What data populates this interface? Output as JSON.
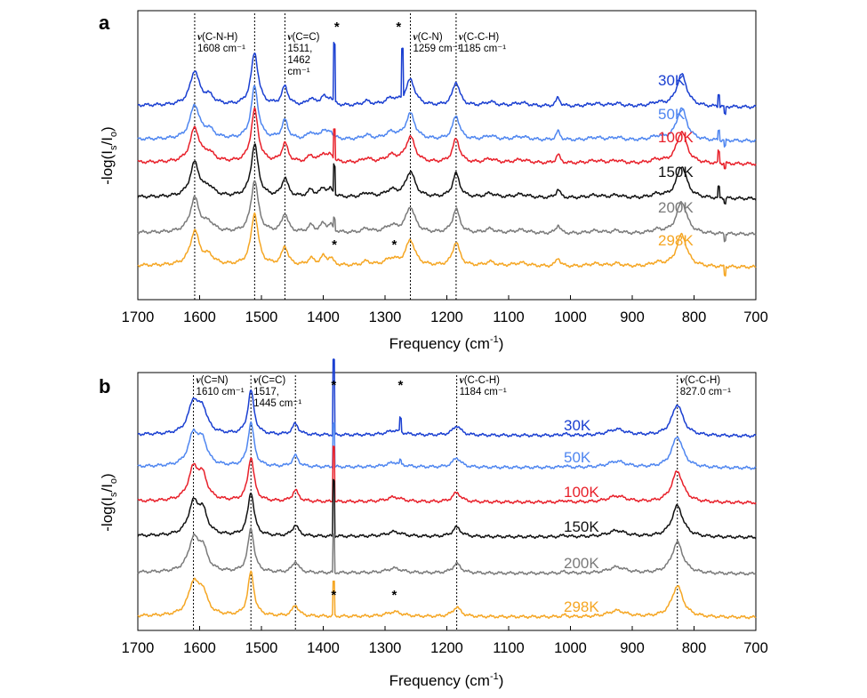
{
  "figure": {
    "x_axis_label": "Frequency (cm⁻¹)",
    "y_axis_label": "-log(Is/Io)"
  },
  "chart_data": [
    {
      "panel": "a",
      "type": "line",
      "xlabel": "Frequency (cm⁻¹)",
      "ylabel": "-log(Is/Io)",
      "xlim": [
        1700,
        700
      ],
      "x_reversed": true,
      "xticks": [
        "1700",
        "1600",
        "1500",
        "1400",
        "1300",
        "1200",
        "1100",
        "1000",
        "900",
        "800",
        "700"
      ],
      "grid": false,
      "legend_position": "right, labels placed beside each trace",
      "series": [
        {
          "name": "30K",
          "color": "#1a3fd1"
        },
        {
          "name": "50K",
          "color": "#4f86f0"
        },
        {
          "name": "100K",
          "color": "#e8202a"
        },
        {
          "name": "150K",
          "color": "#111111"
        },
        {
          "name": "200K",
          "color": "#7a7a7a"
        },
        {
          "name": "298K",
          "color": "#f5a623"
        }
      ],
      "peaks": [
        {
          "x": 1608,
          "height": 1.0,
          "width": 9
        },
        {
          "x": 1585,
          "height": 0.25,
          "width": 10
        },
        {
          "x": 1511,
          "height": 1.55,
          "width": 7
        },
        {
          "x": 1462,
          "height": 0.55,
          "width": 6
        },
        {
          "x": 1420,
          "height": 0.2,
          "width": 6
        },
        {
          "x": 1400,
          "height": 0.25,
          "width": 6
        },
        {
          "x": 1388,
          "height": 0.2,
          "width": 5
        },
        {
          "x": 1330,
          "height": 0.12,
          "width": 8
        },
        {
          "x": 1290,
          "height": 0.2,
          "width": 12
        },
        {
          "x": 1259,
          "height": 0.75,
          "width": 9
        },
        {
          "x": 1185,
          "height": 0.7,
          "width": 7
        },
        {
          "x": 1130,
          "height": 0.12,
          "width": 10
        },
        {
          "x": 1080,
          "height": 0.1,
          "width": 15
        },
        {
          "x": 1020,
          "height": 0.25,
          "width": 4
        },
        {
          "x": 960,
          "height": 0.08,
          "width": 15
        },
        {
          "x": 925,
          "height": 0.08,
          "width": 10
        },
        {
          "x": 860,
          "height": 0.1,
          "width": 12
        },
        {
          "x": 820,
          "height": 0.95,
          "width": 10
        }
      ],
      "spikes": [
        {
          "x": 1382,
          "heights": [
            1.7,
            0.0,
            0.9,
            0.85,
            0.3,
            0.0
          ]
        },
        {
          "x": 1272,
          "heights": [
            1.4,
            0.0,
            0.0,
            0.0,
            0.0,
            0.0
          ]
        },
        {
          "x": 760,
          "heights": [
            0.35,
            0.3,
            0.35,
            0.3,
            0.0,
            0.0
          ]
        },
        {
          "x": 750,
          "heights": [
            -0.25,
            -0.2,
            -0.15,
            -0.15,
            -0.2,
            -0.25
          ]
        }
      ],
      "markers": [
        {
          "x": 1608,
          "label_lines": [
            "(C-N-H)",
            "1608 cm⁻¹"
          ]
        },
        {
          "x": 1511,
          "label_lines": []
        },
        {
          "x": 1462,
          "label_lines": [
            "(C=C)",
            "1511,",
            "1462",
            "cm⁻¹"
          ]
        },
        {
          "x": 1259,
          "label_lines": [
            "(C-N)",
            "1259 cm⁻¹"
          ]
        },
        {
          "x": 1185,
          "label_lines": [
            "(C-C-H)",
            "1185 cm⁻¹"
          ]
        }
      ],
      "asterisks": [
        {
          "x": 1378,
          "position": "top"
        },
        {
          "x": 1278,
          "position": "top"
        },
        {
          "x": 1382,
          "position": "lower"
        },
        {
          "x": 1285,
          "position": "lower"
        }
      ]
    },
    {
      "panel": "b",
      "type": "line",
      "xlabel": "Frequency (cm⁻¹)",
      "ylabel": "-log(Is/Io)",
      "xlim": [
        1700,
        700
      ],
      "x_reversed": true,
      "xticks": [
        "1700",
        "1600",
        "1500",
        "1400",
        "1300",
        "1200",
        "1100",
        "1000",
        "900",
        "800",
        "700"
      ],
      "grid": false,
      "legend_position": "right, labels placed beside each trace",
      "series": [
        {
          "name": "30K",
          "color": "#1a3fd1"
        },
        {
          "name": "50K",
          "color": "#4f86f0"
        },
        {
          "name": "100K",
          "color": "#e8202a"
        },
        {
          "name": "150K",
          "color": "#111111"
        },
        {
          "name": "200K",
          "color": "#7a7a7a"
        },
        {
          "name": "298K",
          "color": "#f5a623"
        }
      ],
      "peaks": [
        {
          "x": 1610,
          "height": 1.0,
          "width": 10
        },
        {
          "x": 1595,
          "height": 0.7,
          "width": 9
        },
        {
          "x": 1517,
          "height": 1.4,
          "width": 6
        },
        {
          "x": 1445,
          "height": 0.35,
          "width": 6
        },
        {
          "x": 1285,
          "height": 0.15,
          "width": 15
        },
        {
          "x": 1184,
          "height": 0.3,
          "width": 8
        },
        {
          "x": 1010,
          "height": 0.05,
          "width": 5
        },
        {
          "x": 925,
          "height": 0.2,
          "width": 18
        },
        {
          "x": 827,
          "height": 1.0,
          "width": 11
        }
      ],
      "spikes": [
        {
          "x": 1383,
          "heights": [
            2.4,
            1.4,
            1.8,
            1.8,
            1.2,
            1.1
          ]
        },
        {
          "x": 1275,
          "heights": [
            0.45,
            0.1,
            0.0,
            0.0,
            0.0,
            0.0
          ]
        }
      ],
      "markers": [
        {
          "x": 1610,
          "label_lines": [
            "(C=N)",
            "1610 cm⁻¹"
          ]
        },
        {
          "x": 1517,
          "label_lines": [
            "(C=C)",
            "1517,",
            "1445 cm⁻¹"
          ]
        },
        {
          "x": 1445,
          "label_lines": []
        },
        {
          "x": 1184,
          "label_lines": [
            "(C-C-H)",
            "1184 cm⁻¹"
          ]
        },
        {
          "x": 827,
          "label_lines": [
            "(C-C-H)",
            "827.0 cm⁻¹"
          ]
        }
      ],
      "asterisks": [
        {
          "x": 1383,
          "position": "top"
        },
        {
          "x": 1275,
          "position": "top"
        },
        {
          "x": 1383,
          "position": "lower"
        },
        {
          "x": 1285,
          "position": "lower"
        }
      ]
    }
  ],
  "panels": [
    "a",
    "b"
  ]
}
